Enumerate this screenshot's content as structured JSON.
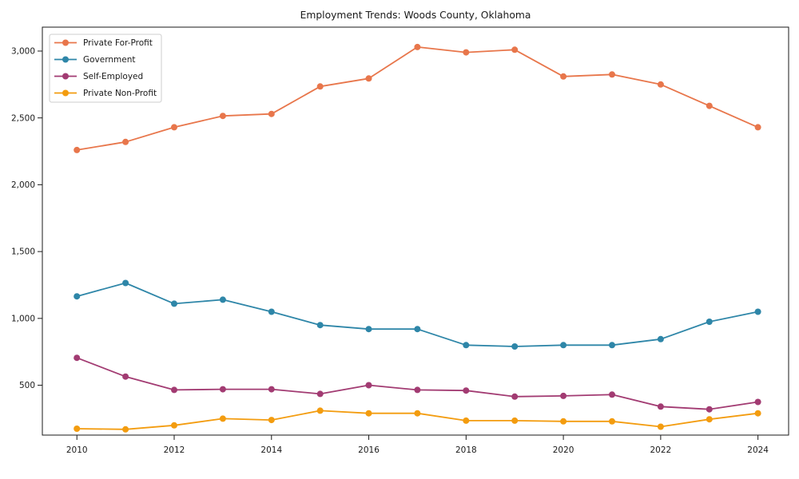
{
  "chart_data": {
    "type": "line",
    "title": "Employment Trends: Woods County, Oklahoma",
    "xlabel": "",
    "ylabel": "",
    "grid": false,
    "legend_position": "upper-left",
    "x": [
      2010,
      2011,
      2012,
      2013,
      2014,
      2015,
      2016,
      2017,
      2018,
      2019,
      2020,
      2021,
      2022,
      2023,
      2024
    ],
    "x_tick_years": [
      2010,
      2012,
      2014,
      2016,
      2018,
      2020,
      2022,
      2024
    ],
    "x_tick_labels": [
      "2010",
      "2012",
      "2014",
      "2016",
      "2018",
      "2020",
      "2022",
      "2024"
    ],
    "y_ticks": [
      500,
      1000,
      1500,
      2000,
      2500,
      3000
    ],
    "y_tick_labels": [
      "500",
      "1,000",
      "1,500",
      "2,000",
      "2,500",
      "3,000"
    ],
    "xlim": [
      2009.29,
      2024.63
    ],
    "ylim": [
      127,
      3179
    ],
    "series": [
      {
        "name": "Private For-Profit",
        "slug": "private-for-profit",
        "color": "#e8764b",
        "values": [
          2260,
          2320,
          2430,
          2515,
          2530,
          2735,
          2795,
          3030,
          2990,
          3010,
          2810,
          2825,
          2750,
          2590,
          2430
        ]
      },
      {
        "name": "Government",
        "slug": "government",
        "color": "#2e86a8",
        "values": [
          1165,
          1265,
          1110,
          1140,
          1050,
          950,
          920,
          920,
          800,
          790,
          800,
          800,
          845,
          975,
          1050
        ]
      },
      {
        "name": "Self-Employed",
        "slug": "self-employed",
        "color": "#a23b72",
        "values": [
          705,
          565,
          465,
          470,
          470,
          435,
          500,
          465,
          460,
          415,
          420,
          430,
          340,
          320,
          375
        ]
      },
      {
        "name": "Private Non-Profit",
        "slug": "private-non-profit",
        "color": "#f39c0f",
        "values": [
          175,
          170,
          200,
          250,
          240,
          310,
          290,
          290,
          235,
          235,
          230,
          230,
          190,
          245,
          290
        ]
      }
    ],
    "axis_color": "#1a1a1a"
  }
}
